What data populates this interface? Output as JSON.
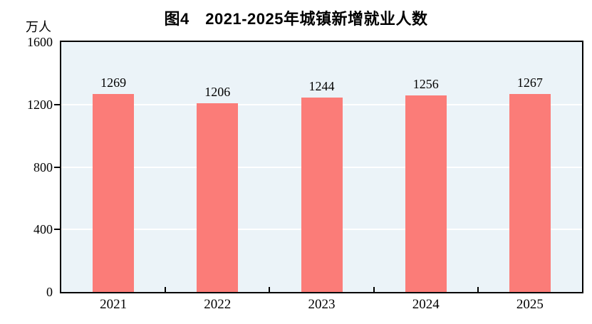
{
  "chart_data": {
    "type": "bar",
    "title": "图4　2021-2025年城镇新增就业人数",
    "unit": "万人",
    "categories": [
      "2021",
      "2022",
      "2023",
      "2024",
      "2025"
    ],
    "values": [
      1269,
      1206,
      1244,
      1256,
      1267
    ],
    "xlabel": "",
    "ylabel": "万人",
    "ylim": [
      0,
      1600
    ],
    "yticks": [
      0,
      400,
      800,
      1200,
      1600
    ],
    "gridlines": [
      400,
      800,
      1200
    ],
    "grid": "horizontal-white",
    "legend_position": "none",
    "colors": {
      "bar": "#fb7c78",
      "plot_background": "#ebf3f8",
      "gridline": "#ffffff",
      "axis": "#000000",
      "text": "#000000"
    }
  }
}
